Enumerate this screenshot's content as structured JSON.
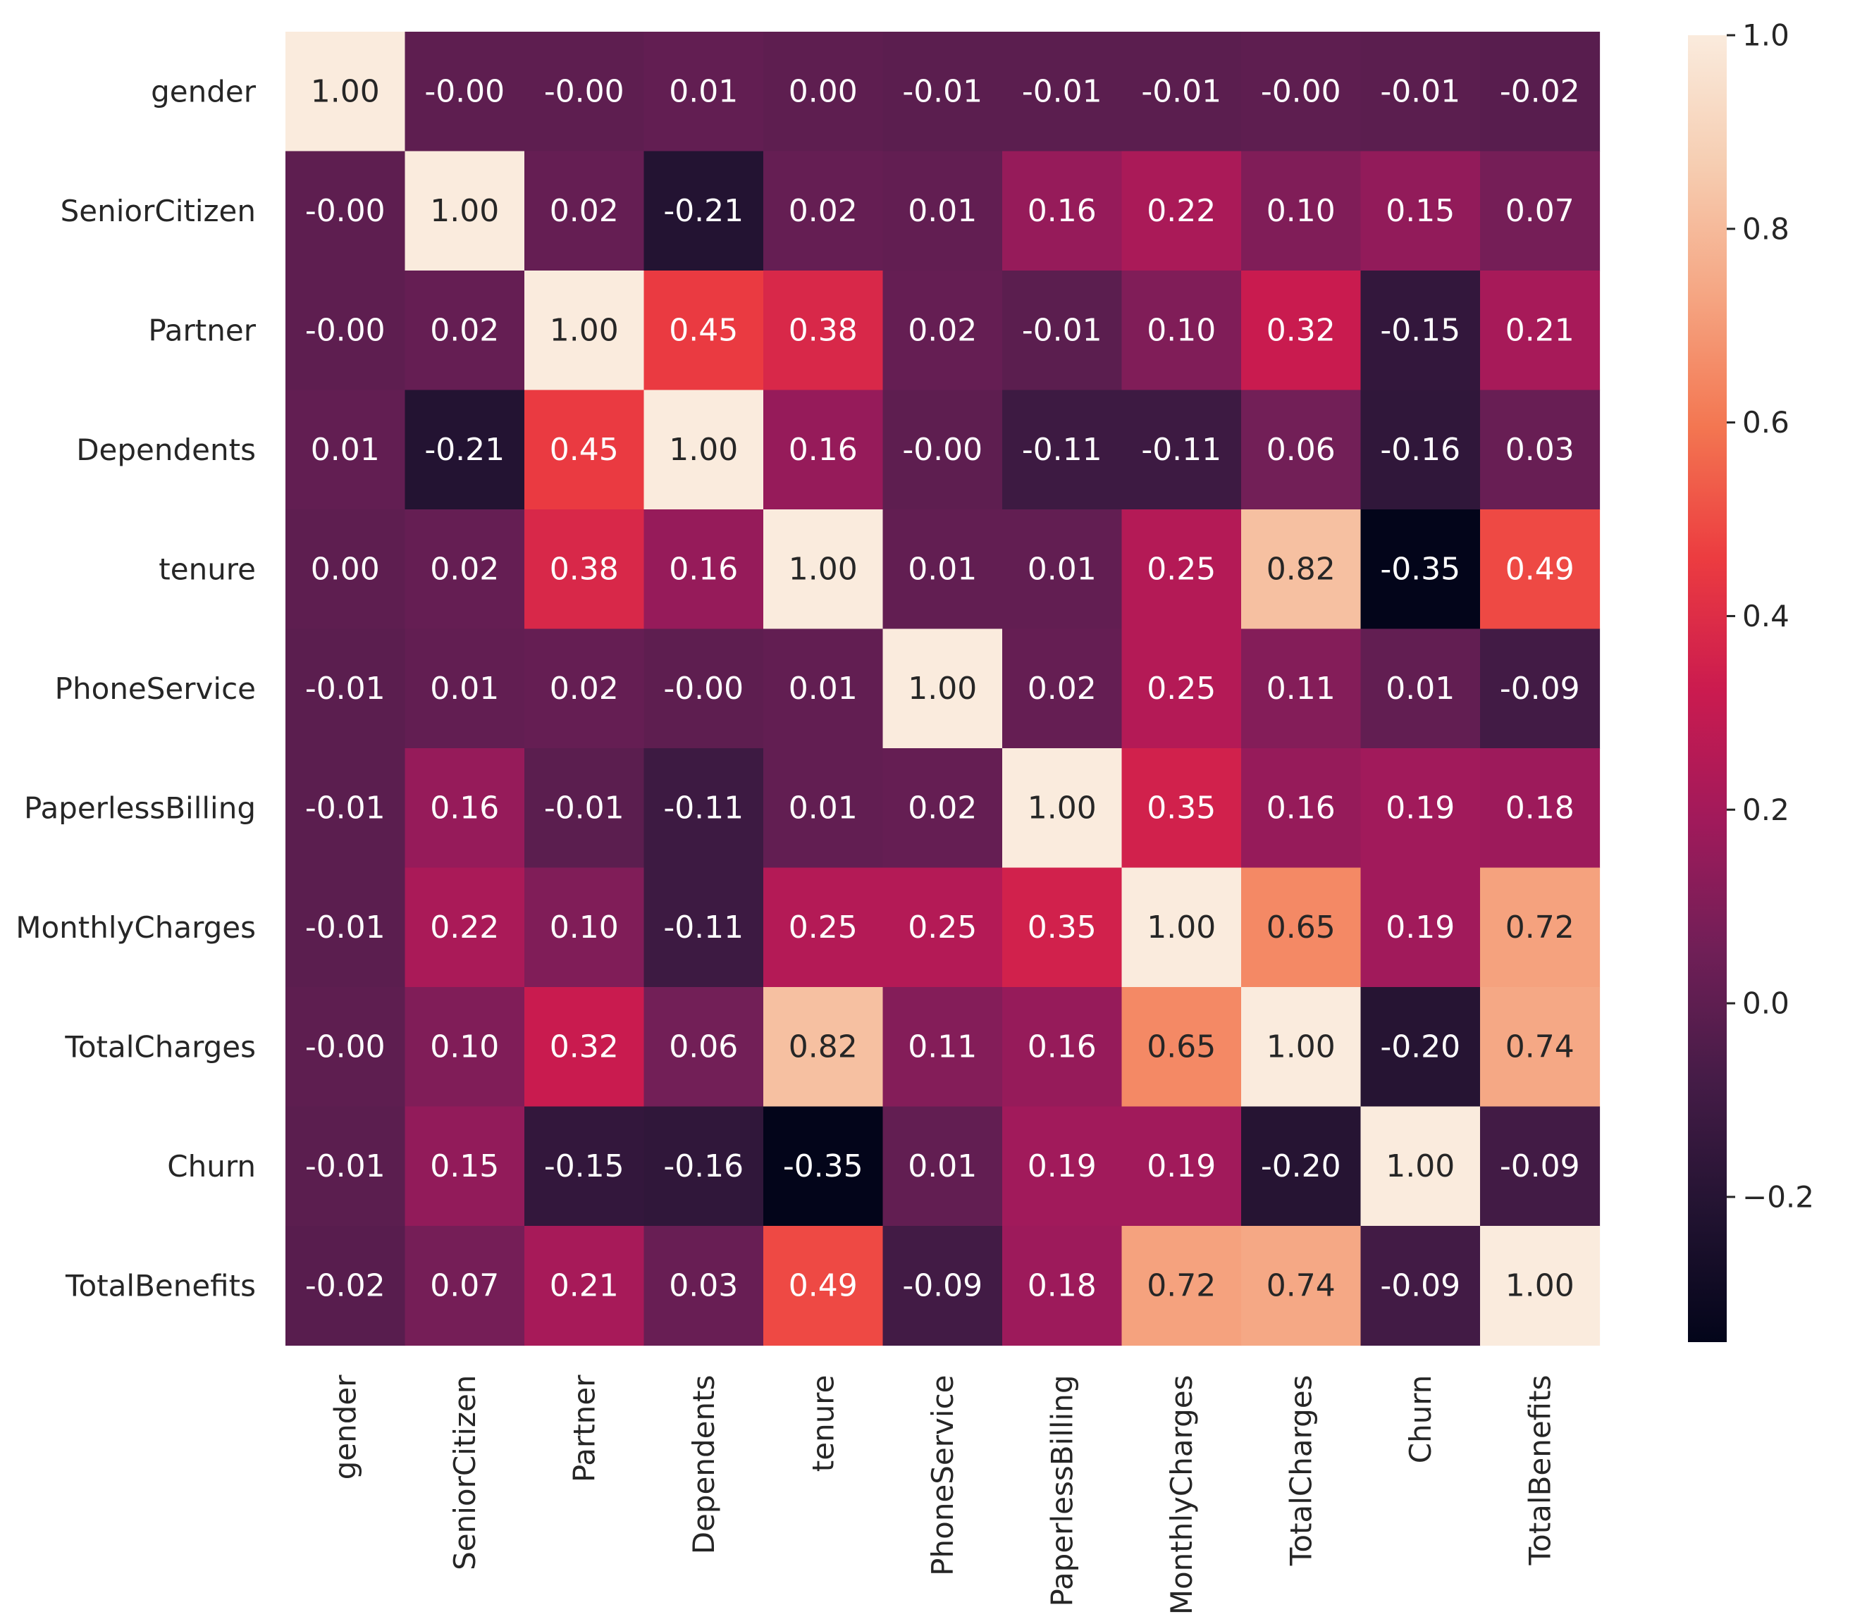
{
  "chart_data": {
    "type": "heatmap",
    "title": "",
    "xlabel": "",
    "ylabel": "",
    "labels": [
      "gender",
      "SeniorCitizen",
      "Partner",
      "Dependents",
      "tenure",
      "PhoneService",
      "PaperlessBilling",
      "MonthlyCharges",
      "TotalCharges",
      "Churn",
      "TotalBenefits"
    ],
    "values": [
      [
        1.0,
        -0.0,
        -0.0,
        0.01,
        0.0,
        -0.01,
        -0.01,
        -0.01,
        -0.0,
        -0.01,
        -0.02
      ],
      [
        -0.0,
        1.0,
        0.02,
        -0.21,
        0.02,
        0.01,
        0.16,
        0.22,
        0.1,
        0.15,
        0.07
      ],
      [
        -0.0,
        0.02,
        1.0,
        0.45,
        0.38,
        0.02,
        -0.01,
        0.1,
        0.32,
        -0.15,
        0.21
      ],
      [
        0.01,
        -0.21,
        0.45,
        1.0,
        0.16,
        -0.0,
        -0.11,
        -0.11,
        0.06,
        -0.16,
        0.03
      ],
      [
        0.0,
        0.02,
        0.38,
        0.16,
        1.0,
        0.01,
        0.01,
        0.25,
        0.82,
        -0.35,
        0.49
      ],
      [
        -0.01,
        0.01,
        0.02,
        -0.0,
        0.01,
        1.0,
        0.02,
        0.25,
        0.11,
        0.01,
        -0.09
      ],
      [
        -0.01,
        0.16,
        -0.01,
        -0.11,
        0.01,
        0.02,
        1.0,
        0.35,
        0.16,
        0.19,
        0.18
      ],
      [
        -0.01,
        0.22,
        0.1,
        -0.11,
        0.25,
        0.25,
        0.35,
        1.0,
        0.65,
        0.19,
        0.72
      ],
      [
        -0.0,
        0.1,
        0.32,
        0.06,
        0.82,
        0.11,
        0.16,
        0.65,
        1.0,
        -0.2,
        0.74
      ],
      [
        -0.01,
        0.15,
        -0.15,
        -0.16,
        -0.35,
        0.01,
        0.19,
        0.19,
        -0.2,
        1.0,
        -0.09
      ],
      [
        -0.02,
        0.07,
        0.21,
        0.03,
        0.49,
        -0.09,
        0.18,
        0.72,
        0.74,
        -0.09,
        1.0
      ]
    ],
    "annotation_format": "0.00",
    "colorbar": {
      "range": [
        -0.35,
        1.0
      ],
      "ticks": [
        -0.2,
        0.0,
        0.2,
        0.4,
        0.6,
        0.8,
        1.0
      ],
      "tick_labels": [
        "−0.2",
        "0.0",
        "0.2",
        "0.4",
        "0.6",
        "0.8",
        "1.0"
      ],
      "colormap": "rocket",
      "placement": "right"
    },
    "colors": [
      "#03051a",
      "#221331",
      "#451c47",
      "#701f57",
      "#a11a5b",
      "#cb1b4f",
      "#ec3c40",
      "#f37651",
      "#f5a582",
      "#f6cdb1",
      "#faebdd"
    ],
    "annotation_colors": {
      "light": "#ffffff",
      "dark": "#262626"
    }
  }
}
